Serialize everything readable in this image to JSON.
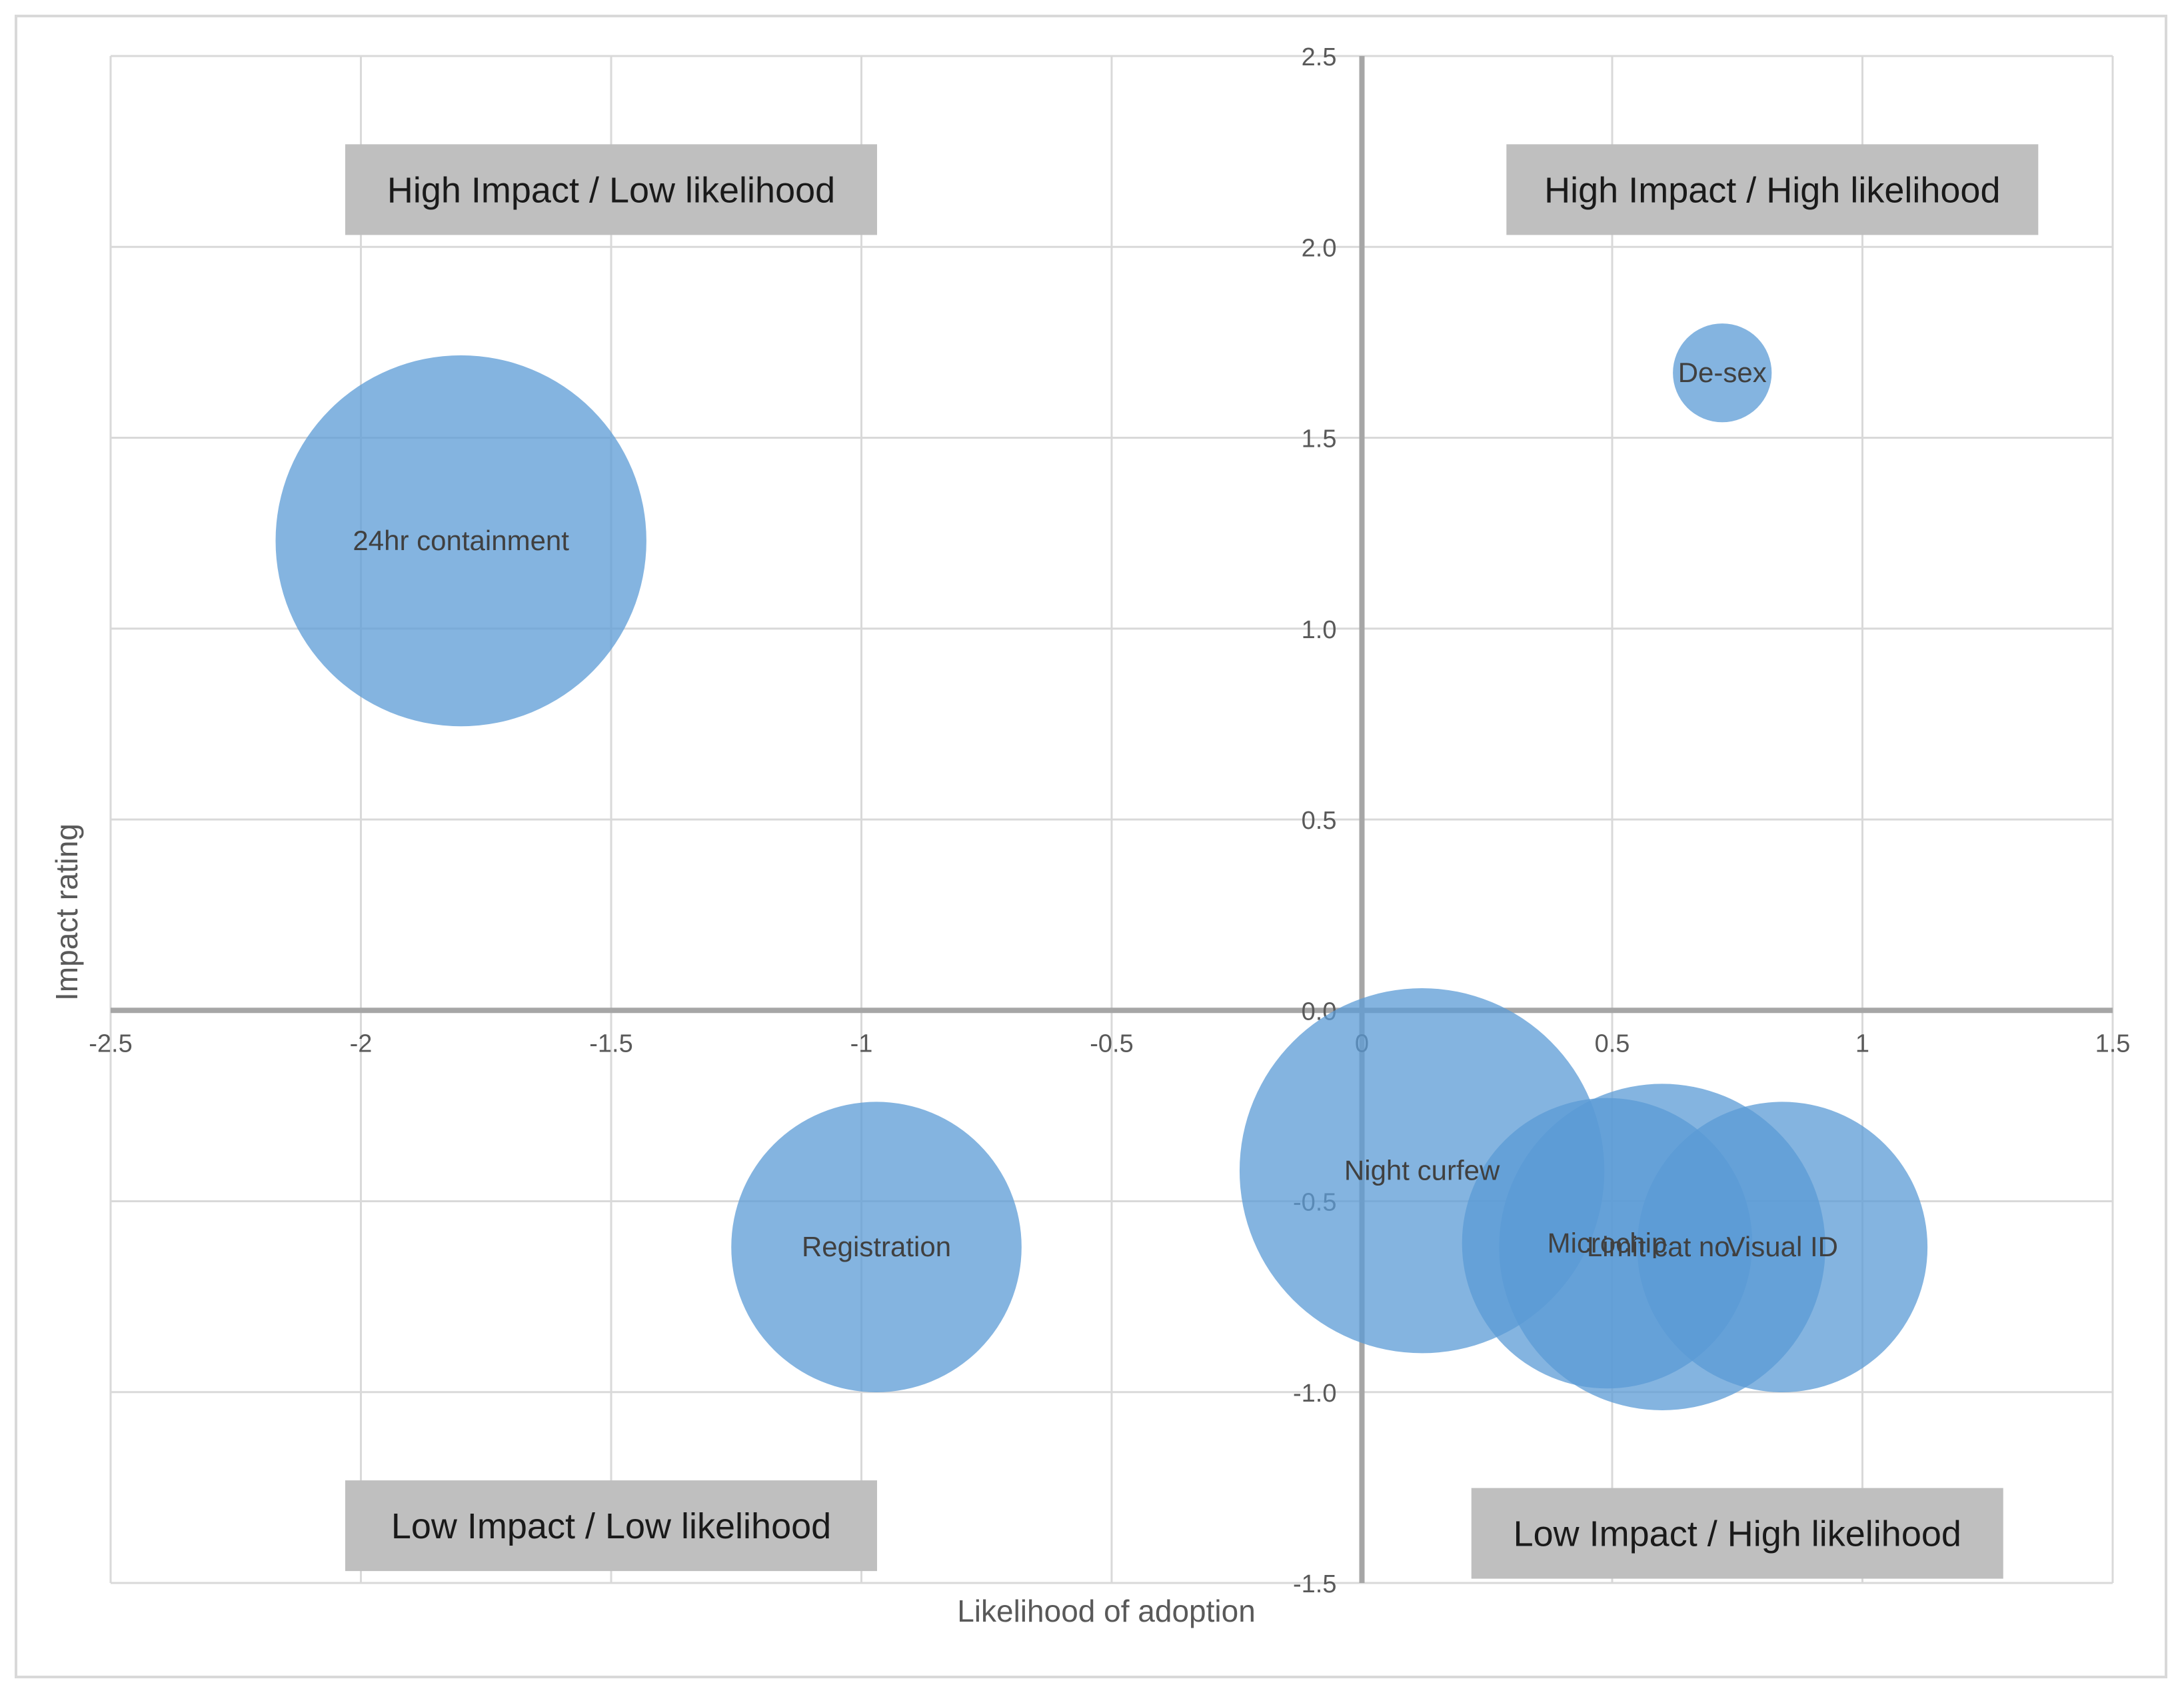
{
  "chart_data": {
    "type": "bubble",
    "xlabel": "Likelihood of adoption",
    "ylabel": "Impact rating",
    "xlim": [
      -2.5,
      1.5
    ],
    "ylim": [
      -1.5,
      2.5
    ],
    "x_ticks": [
      -2.5,
      -2,
      -1.5,
      -1,
      -0.5,
      0,
      0.5,
      1,
      1.5
    ],
    "x_tick_labels": [
      "-2.5",
      "-2",
      "-1.5",
      "-1",
      "-0.5",
      "0",
      "0.5",
      "1",
      "1.5"
    ],
    "y_ticks": [
      -1.5,
      -1.0,
      -0.5,
      0.0,
      0.5,
      1.0,
      1.5,
      2.0,
      2.5
    ],
    "y_tick_labels": [
      "-1.5",
      "-1.0",
      "-0.5",
      "0.0",
      "0.5",
      "1.0",
      "1.5",
      "2.0",
      "2.5"
    ],
    "grid": true,
    "bubble_color": "#5b9bd5",
    "points": [
      {
        "label": "24hr containment",
        "x": -1.8,
        "y": 1.23,
        "size": 3.1
      },
      {
        "label": "De-sex",
        "x": 0.72,
        "y": 1.67,
        "size": 0.22
      },
      {
        "label": "Registration",
        "x": -0.97,
        "y": -0.62,
        "size": 1.9
      },
      {
        "label": "Night curfew",
        "x": 0.12,
        "y": -0.42,
        "size": 3.0
      },
      {
        "label": "Microchip",
        "x": 0.49,
        "y": -0.61,
        "size": 1.9
      },
      {
        "label": "Limit cat no.",
        "x": 0.6,
        "y": -0.62,
        "size": 2.4
      },
      {
        "label": "Visual ID",
        "x": 0.84,
        "y": -0.62,
        "size": 1.9
      }
    ],
    "quadrant_labels": [
      {
        "text": "High Impact / Low likelihood",
        "x": -1.5,
        "y": 2.15
      },
      {
        "text": "High Impact / High likelihood",
        "x": 0.82,
        "y": 2.15
      },
      {
        "text": "Low Impact / Low likelihood",
        "x": -1.5,
        "y": -1.35
      },
      {
        "text": "Low Impact / High likelihood",
        "x": 0.75,
        "y": -1.37
      }
    ],
    "quadrant_label_bg": "#bfbfbf"
  }
}
